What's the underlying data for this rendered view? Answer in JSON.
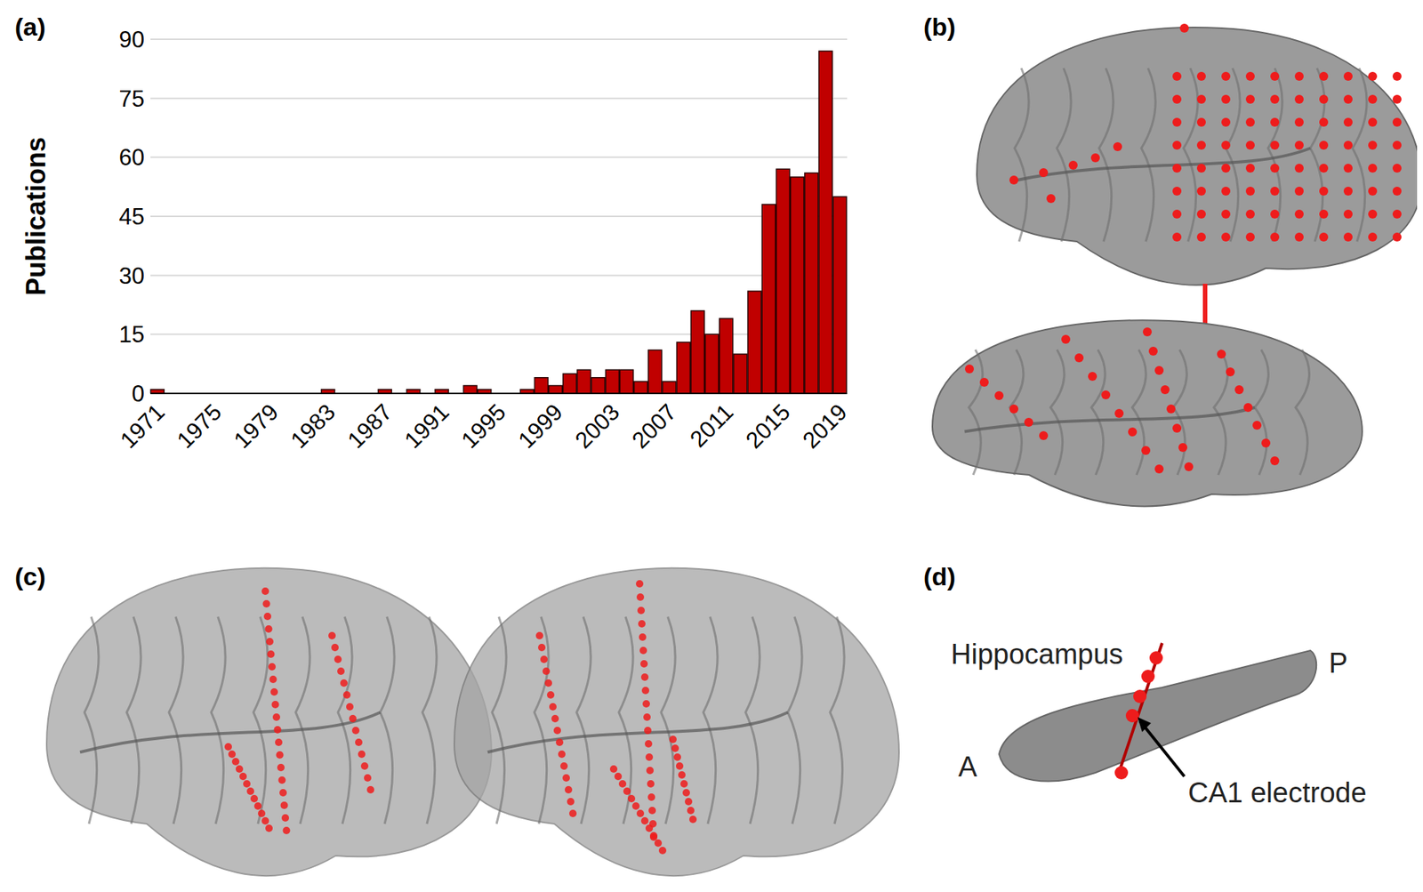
{
  "chart_data": {
    "type": "bar",
    "y_label": "Publications",
    "categories": [
      "1971",
      null,
      null,
      null,
      "1975",
      null,
      null,
      null,
      "1979",
      null,
      null,
      null,
      "1983",
      null,
      null,
      null,
      "1987",
      null,
      null,
      null,
      "1991",
      null,
      null,
      null,
      "1995",
      null,
      null,
      null,
      "1999",
      null,
      null,
      null,
      "2003",
      null,
      null,
      null,
      "2007",
      null,
      null,
      null,
      "2011",
      null,
      null,
      null,
      "2015",
      null,
      null,
      null,
      "2019"
    ],
    "values": [
      1,
      0,
      0,
      0,
      0,
      0,
      0,
      0,
      0,
      0,
      0,
      0,
      1,
      0,
      0,
      0,
      1,
      0,
      1,
      0,
      1,
      0,
      2,
      1,
      0,
      0,
      1,
      4,
      2,
      5,
      6,
      4,
      6,
      6,
      3,
      11,
      3,
      13,
      21,
      15,
      19,
      10,
      26,
      48,
      57,
      55,
      56,
      87,
      50
    ],
    "color": "#c00000",
    "ylim": [
      0,
      90
    ],
    "yticks": [
      0,
      15,
      30,
      45,
      60,
      75,
      90
    ],
    "grid": true
  },
  "panels": {
    "labels": [
      "(a)",
      "(b)",
      "(c)",
      "(d)"
    ],
    "d": {
      "structure": "Hippocampus",
      "anterior": "A",
      "posterior": "P",
      "electrode": "CA1 electrode"
    }
  }
}
